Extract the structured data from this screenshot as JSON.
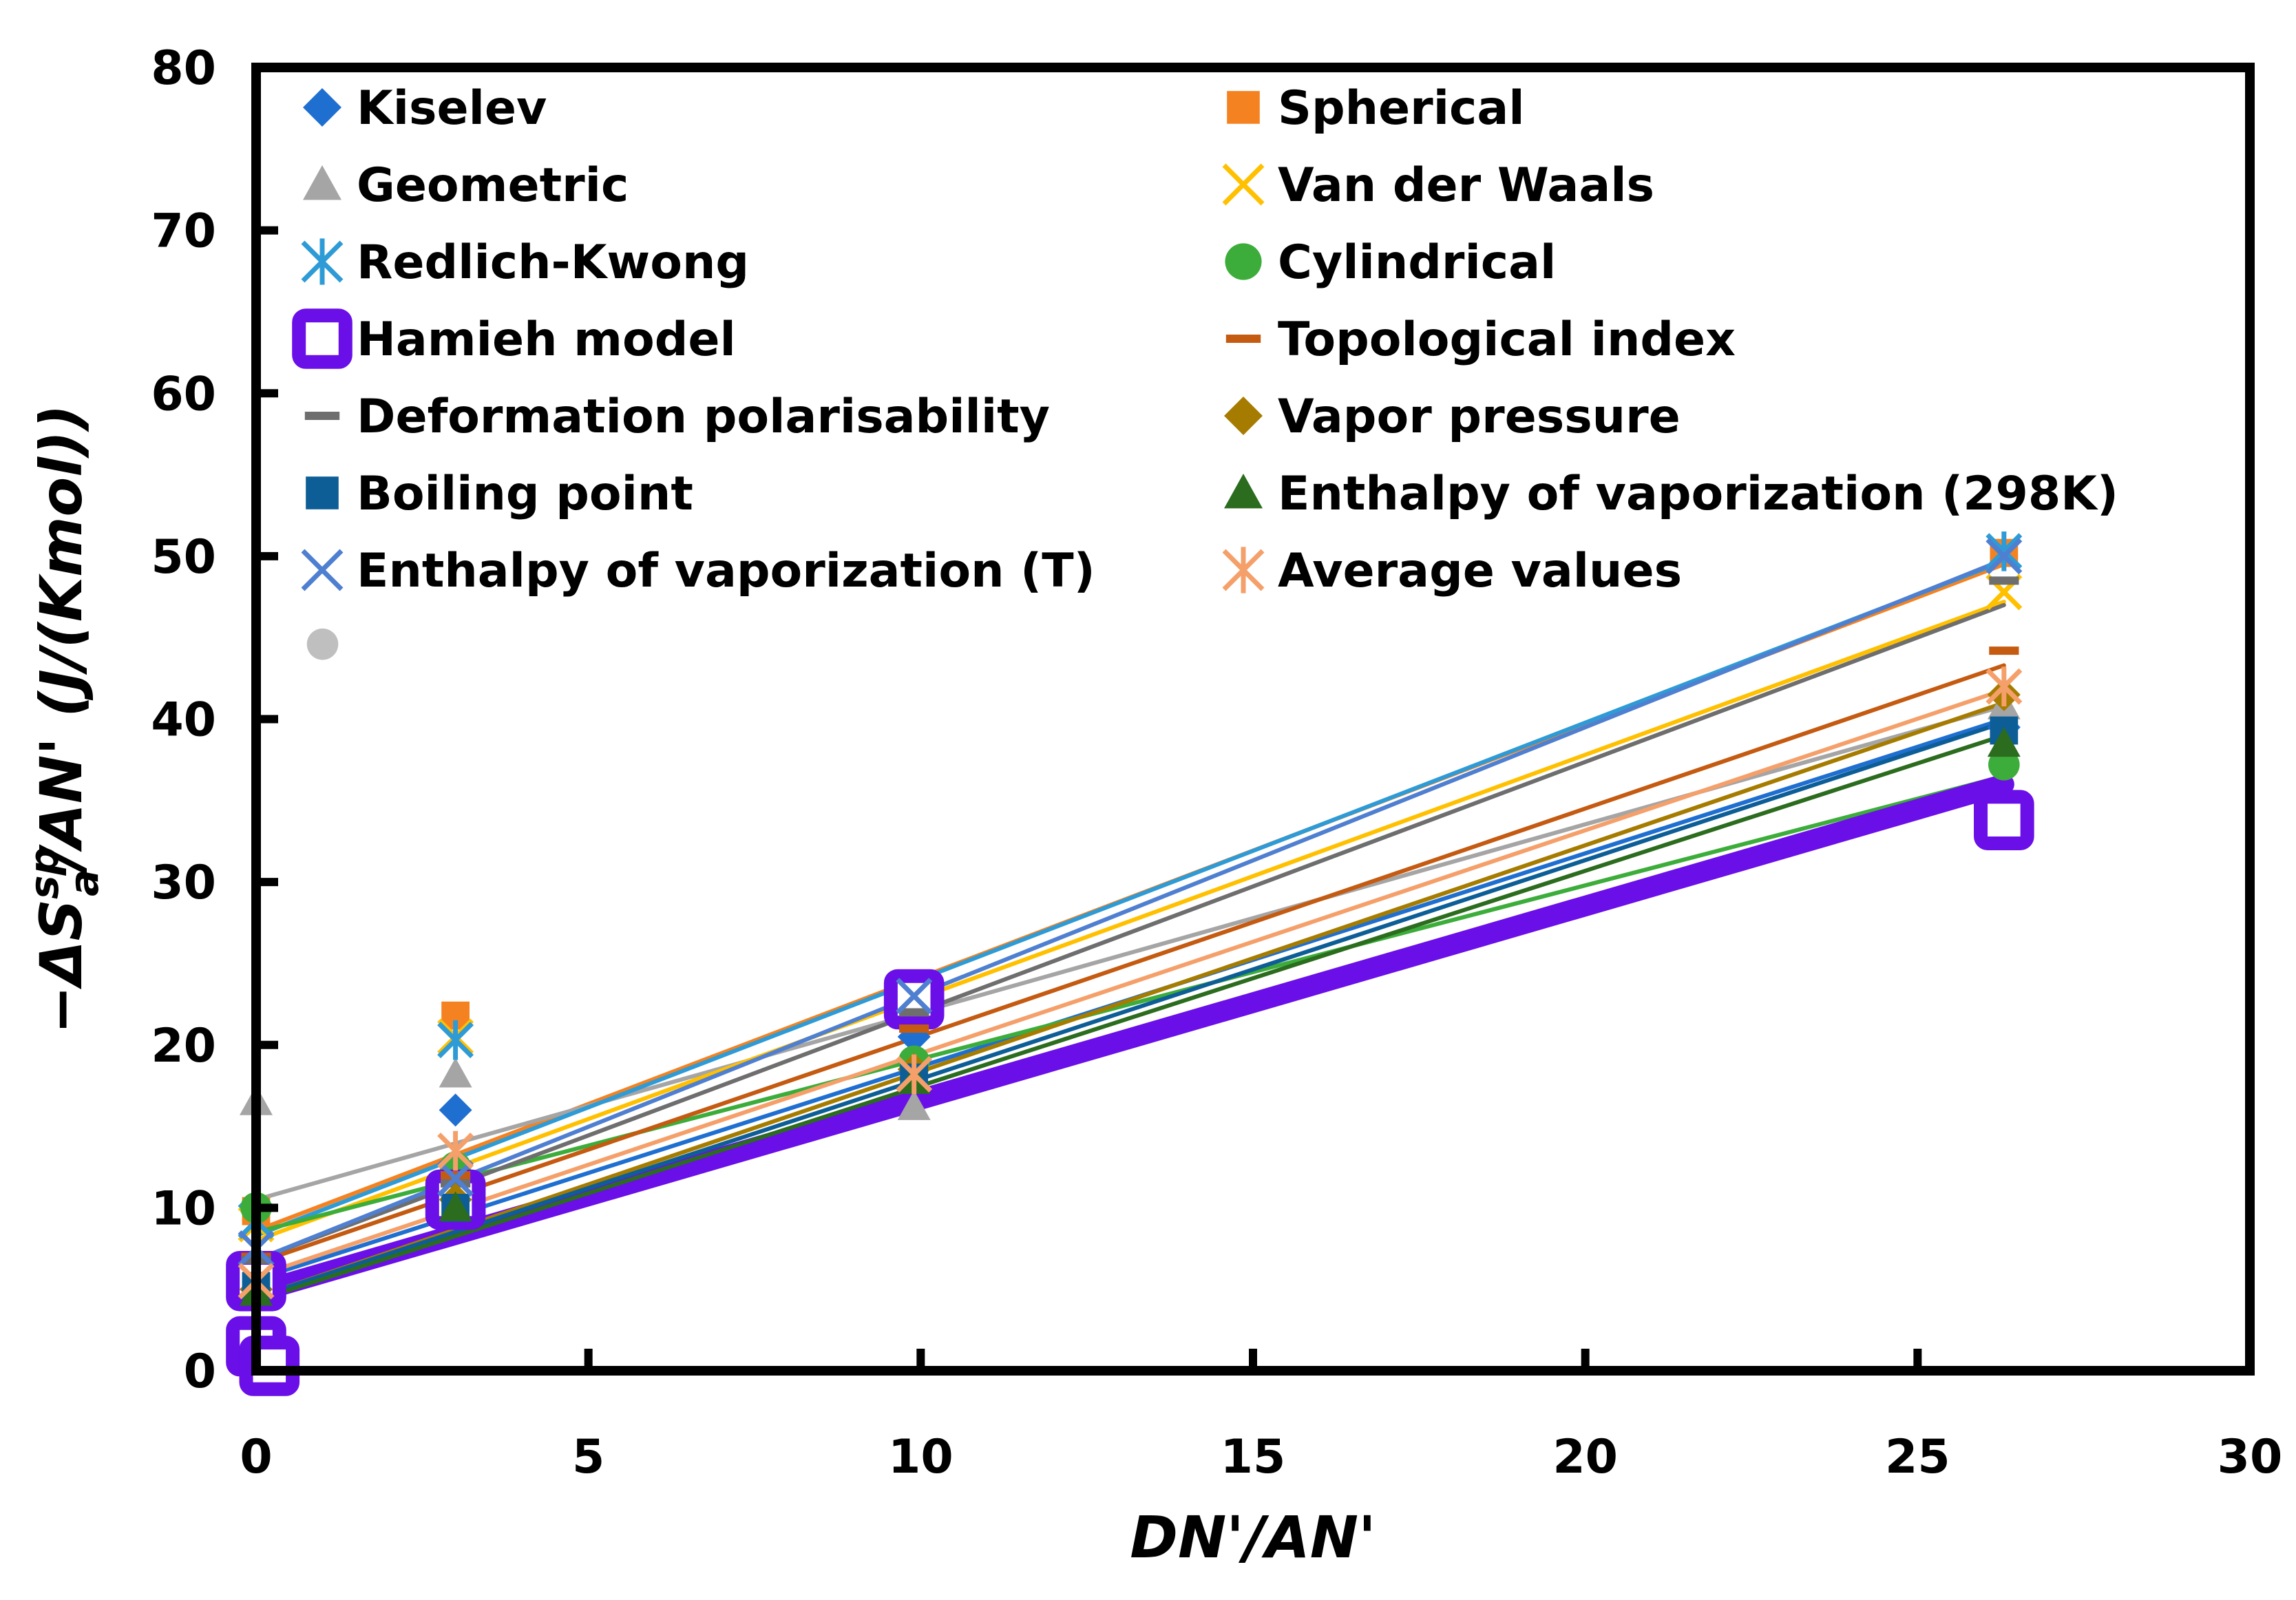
{
  "chart_data": {
    "type": "scatter",
    "xlabel": "DN'/AN'",
    "ylabel": {
      "prefix": "−ΔS",
      "subscript": "a",
      "superscript": "sp",
      "suffix": "/AN' (J/(Kmol))"
    },
    "xlim": [
      0,
      30
    ],
    "ylim": [
      0,
      80
    ],
    "xticks": [
      0,
      5,
      10,
      15,
      20,
      25,
      30
    ],
    "yticks": [
      0,
      10,
      20,
      30,
      40,
      50,
      60,
      70,
      80
    ],
    "grid": false,
    "legend_position": "top-left, inside plot, two columns",
    "series": [
      {
        "name": "Kiselev",
        "marker": "diamond",
        "color": "#1f6fd1",
        "points": [
          [
            0,
            6.2
          ],
          [
            3.0,
            16.0
          ],
          [
            9.9,
            20.5
          ],
          [
            26.3,
            39.5
          ]
        ],
        "fit": [
          [
            0,
            5.6
          ],
          [
            26.3,
            40.0
          ]
        ]
      },
      {
        "name": "Spherical",
        "marker": "square",
        "color": "#f58220",
        "points": [
          [
            0,
            9.8
          ],
          [
            3.0,
            21.8
          ],
          [
            9.9,
            23.2
          ],
          [
            26.3,
            50.2
          ]
        ],
        "fit": [
          [
            0,
            8.6
          ],
          [
            26.3,
            49.5
          ]
        ]
      },
      {
        "name": "Geometric",
        "marker": "triangle",
        "color": "#a5a5a5",
        "points": [
          [
            0,
            16.5
          ],
          [
            3.0,
            18.2
          ],
          [
            9.9,
            16.2
          ],
          [
            26.3,
            40.8
          ]
        ],
        "fit": [
          [
            0,
            10.5
          ],
          [
            26.3,
            40.8
          ]
        ]
      },
      {
        "name": "Van der Waals",
        "marker": "x",
        "color": "#ffc000",
        "points": [
          [
            0,
            9.0
          ],
          [
            3.0,
            20.5
          ],
          [
            9.9,
            22.8
          ],
          [
            26.3,
            47.8
          ]
        ],
        "fit": [
          [
            0,
            8.0
          ],
          [
            26.3,
            47.2
          ]
        ]
      },
      {
        "name": "Redlich-Kwong",
        "marker": "star",
        "color": "#2e9bd6",
        "points": [
          [
            0,
            9.2
          ],
          [
            3.0,
            20.3
          ],
          [
            9.9,
            23.0
          ],
          [
            26.3,
            50.3
          ]
        ],
        "fit": [
          [
            0,
            8.3
          ],
          [
            26.3,
            49.7
          ]
        ]
      },
      {
        "name": "Cylindrical",
        "marker": "circle",
        "color": "#3cad3a",
        "points": [
          [
            0,
            10.0
          ],
          [
            3.0,
            12.5
          ],
          [
            9.9,
            19.0
          ],
          [
            26.3,
            37.2
          ]
        ],
        "fit": [
          [
            0,
            8.5
          ],
          [
            26.3,
            36.5
          ]
        ]
      },
      {
        "name": "Hamieh model",
        "marker": "hollow-square",
        "color": "#6a0fe8",
        "points": [
          [
            0,
            1.5
          ],
          [
            0.2,
            0.3
          ],
          [
            0,
            5.5
          ],
          [
            3.0,
            10.5
          ],
          [
            9.9,
            22.8
          ],
          [
            26.3,
            33.8
          ]
        ],
        "fit": [
          [
            0,
            4.8
          ],
          [
            26.3,
            36.0
          ]
        ]
      },
      {
        "name": "Topological index",
        "marker": "dash",
        "color": "#c55a11",
        "points": [
          [
            0,
            7.0
          ],
          [
            3.0,
            12.0
          ],
          [
            9.9,
            21.0
          ],
          [
            26.3,
            44.2
          ]
        ],
        "fit": [
          [
            0,
            6.6
          ],
          [
            26.3,
            43.3
          ]
        ]
      },
      {
        "name": "Deformation polarisability",
        "marker": "dash",
        "color": "#6e6e6e",
        "points": [
          [
            0,
            6.8
          ],
          [
            3.0,
            11.5
          ],
          [
            9.9,
            22.0
          ],
          [
            26.3,
            48.5
          ]
        ],
        "fit": [
          [
            0,
            6.8
          ],
          [
            26.3,
            47.0
          ]
        ]
      },
      {
        "name": "Vapor pressure",
        "marker": "diamond",
        "color": "#a67c00",
        "points": [
          [
            0,
            5.0
          ],
          [
            3.0,
            10.5
          ],
          [
            9.9,
            18.5
          ],
          [
            26.3,
            41.5
          ]
        ],
        "fit": [
          [
            0,
            4.5
          ],
          [
            26.3,
            41.0
          ]
        ]
      },
      {
        "name": "Boiling point",
        "marker": "square",
        "color": "#0d5e96",
        "points": [
          [
            0,
            5.2
          ],
          [
            3.0,
            10.0
          ],
          [
            9.9,
            18.0
          ],
          [
            26.3,
            39.3
          ]
        ],
        "fit": [
          [
            0,
            4.5
          ],
          [
            26.3,
            39.8
          ]
        ]
      },
      {
        "name": "Enthalpy of vaporization (298K)",
        "marker": "triangle",
        "color": "#2b6c1e",
        "points": [
          [
            0,
            4.8
          ],
          [
            3.0,
            10.0
          ],
          [
            9.9,
            17.8
          ],
          [
            26.3,
            38.5
          ]
        ],
        "fit": [
          [
            0,
            4.3
          ],
          [
            26.3,
            39.0
          ]
        ]
      },
      {
        "name": "Enthalpy of vaporization (T)",
        "marker": "x",
        "color": "#4f7fd0",
        "points": [
          [
            0,
            7.5
          ],
          [
            3.0,
            11.8
          ],
          [
            9.9,
            23.0
          ],
          [
            26.3,
            50.0
          ]
        ],
        "fit": [
          [
            0,
            6.8
          ],
          [
            26.3,
            49.8
          ]
        ]
      },
      {
        "name": "Average values",
        "marker": "star",
        "color": "#f5a06a",
        "points": [
          [
            0,
            5.5
          ],
          [
            3.0,
            13.5
          ],
          [
            9.9,
            18.2
          ],
          [
            26.3,
            42.0
          ]
        ],
        "fit": [
          [
            0,
            5.8
          ],
          [
            26.3,
            41.8
          ]
        ]
      },
      {
        "name": "",
        "marker": "circle",
        "color": "#bfbfbf",
        "points": [
          [
            1.0,
            44.6
          ]
        ]
      }
    ]
  }
}
